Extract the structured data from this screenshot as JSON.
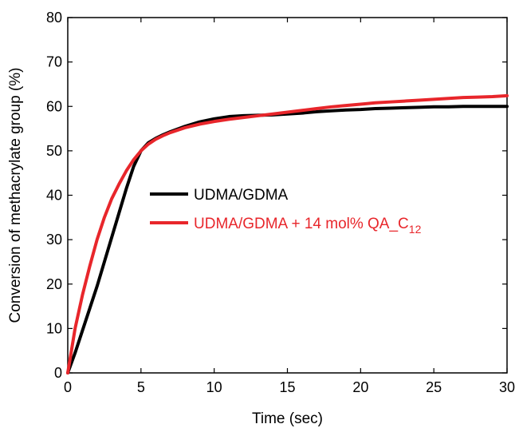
{
  "chart_data": {
    "type": "line",
    "title": "",
    "xlabel": "Time (sec)",
    "ylabel": "Conversion of methacrylate group (%)",
    "xlim": [
      0,
      30
    ],
    "ylim": [
      0,
      80
    ],
    "xticks": [
      "0",
      "5",
      "10",
      "15",
      "20",
      "25",
      "30"
    ],
    "yticks": [
      "0",
      "10",
      "20",
      "30",
      "40",
      "50",
      "60",
      "70",
      "80"
    ],
    "grid": false,
    "legend_position": "center-left",
    "series": [
      {
        "name": "UDMA/GDMA",
        "color": "#000000",
        "x": [
          0,
          0.5,
          1,
          1.5,
          2,
          2.5,
          3,
          3.5,
          4,
          4.5,
          5,
          5.5,
          6,
          6.5,
          7,
          8,
          9,
          10,
          11,
          12,
          13,
          14,
          15,
          16,
          17,
          18,
          19,
          20,
          21,
          22,
          23,
          24,
          25,
          26,
          27,
          28,
          29,
          30
        ],
        "y": [
          0,
          4.5,
          9.5,
          14.5,
          19.5,
          25,
          30.5,
          36,
          41.5,
          46.5,
          50,
          51.8,
          52.8,
          53.6,
          54.3,
          55.5,
          56.5,
          57.2,
          57.7,
          57.9,
          58.0,
          58.1,
          58.3,
          58.5,
          58.8,
          59.0,
          59.2,
          59.3,
          59.5,
          59.6,
          59.7,
          59.8,
          59.9,
          59.9,
          60.0,
          60.0,
          60.0,
          60.0
        ]
      },
      {
        "name": "UDMA/GDMA + 14 mol% QA_C12",
        "name_main": "UDMA/GDMA + 14 mol% QA_C",
        "name_sub": "12",
        "color": "#e8262b",
        "x": [
          0,
          0.5,
          1,
          1.5,
          2,
          2.5,
          3,
          3.5,
          4,
          4.5,
          5,
          5.5,
          6,
          6.5,
          7,
          8,
          9,
          10,
          11,
          12,
          13,
          14,
          15,
          16,
          17,
          18,
          19,
          20,
          21,
          22,
          23,
          24,
          25,
          26,
          27,
          28,
          29,
          30
        ],
        "y": [
          0,
          10,
          17.5,
          24,
          30,
          35,
          39.2,
          42.5,
          45.5,
          48,
          50,
          51.5,
          52.6,
          53.4,
          54.1,
          55.2,
          56.0,
          56.6,
          57.1,
          57.5,
          57.9,
          58.3,
          58.7,
          59.1,
          59.5,
          59.9,
          60.2,
          60.5,
          60.8,
          61.0,
          61.2,
          61.4,
          61.6,
          61.8,
          62.0,
          62.1,
          62.2,
          62.4
        ]
      }
    ]
  }
}
